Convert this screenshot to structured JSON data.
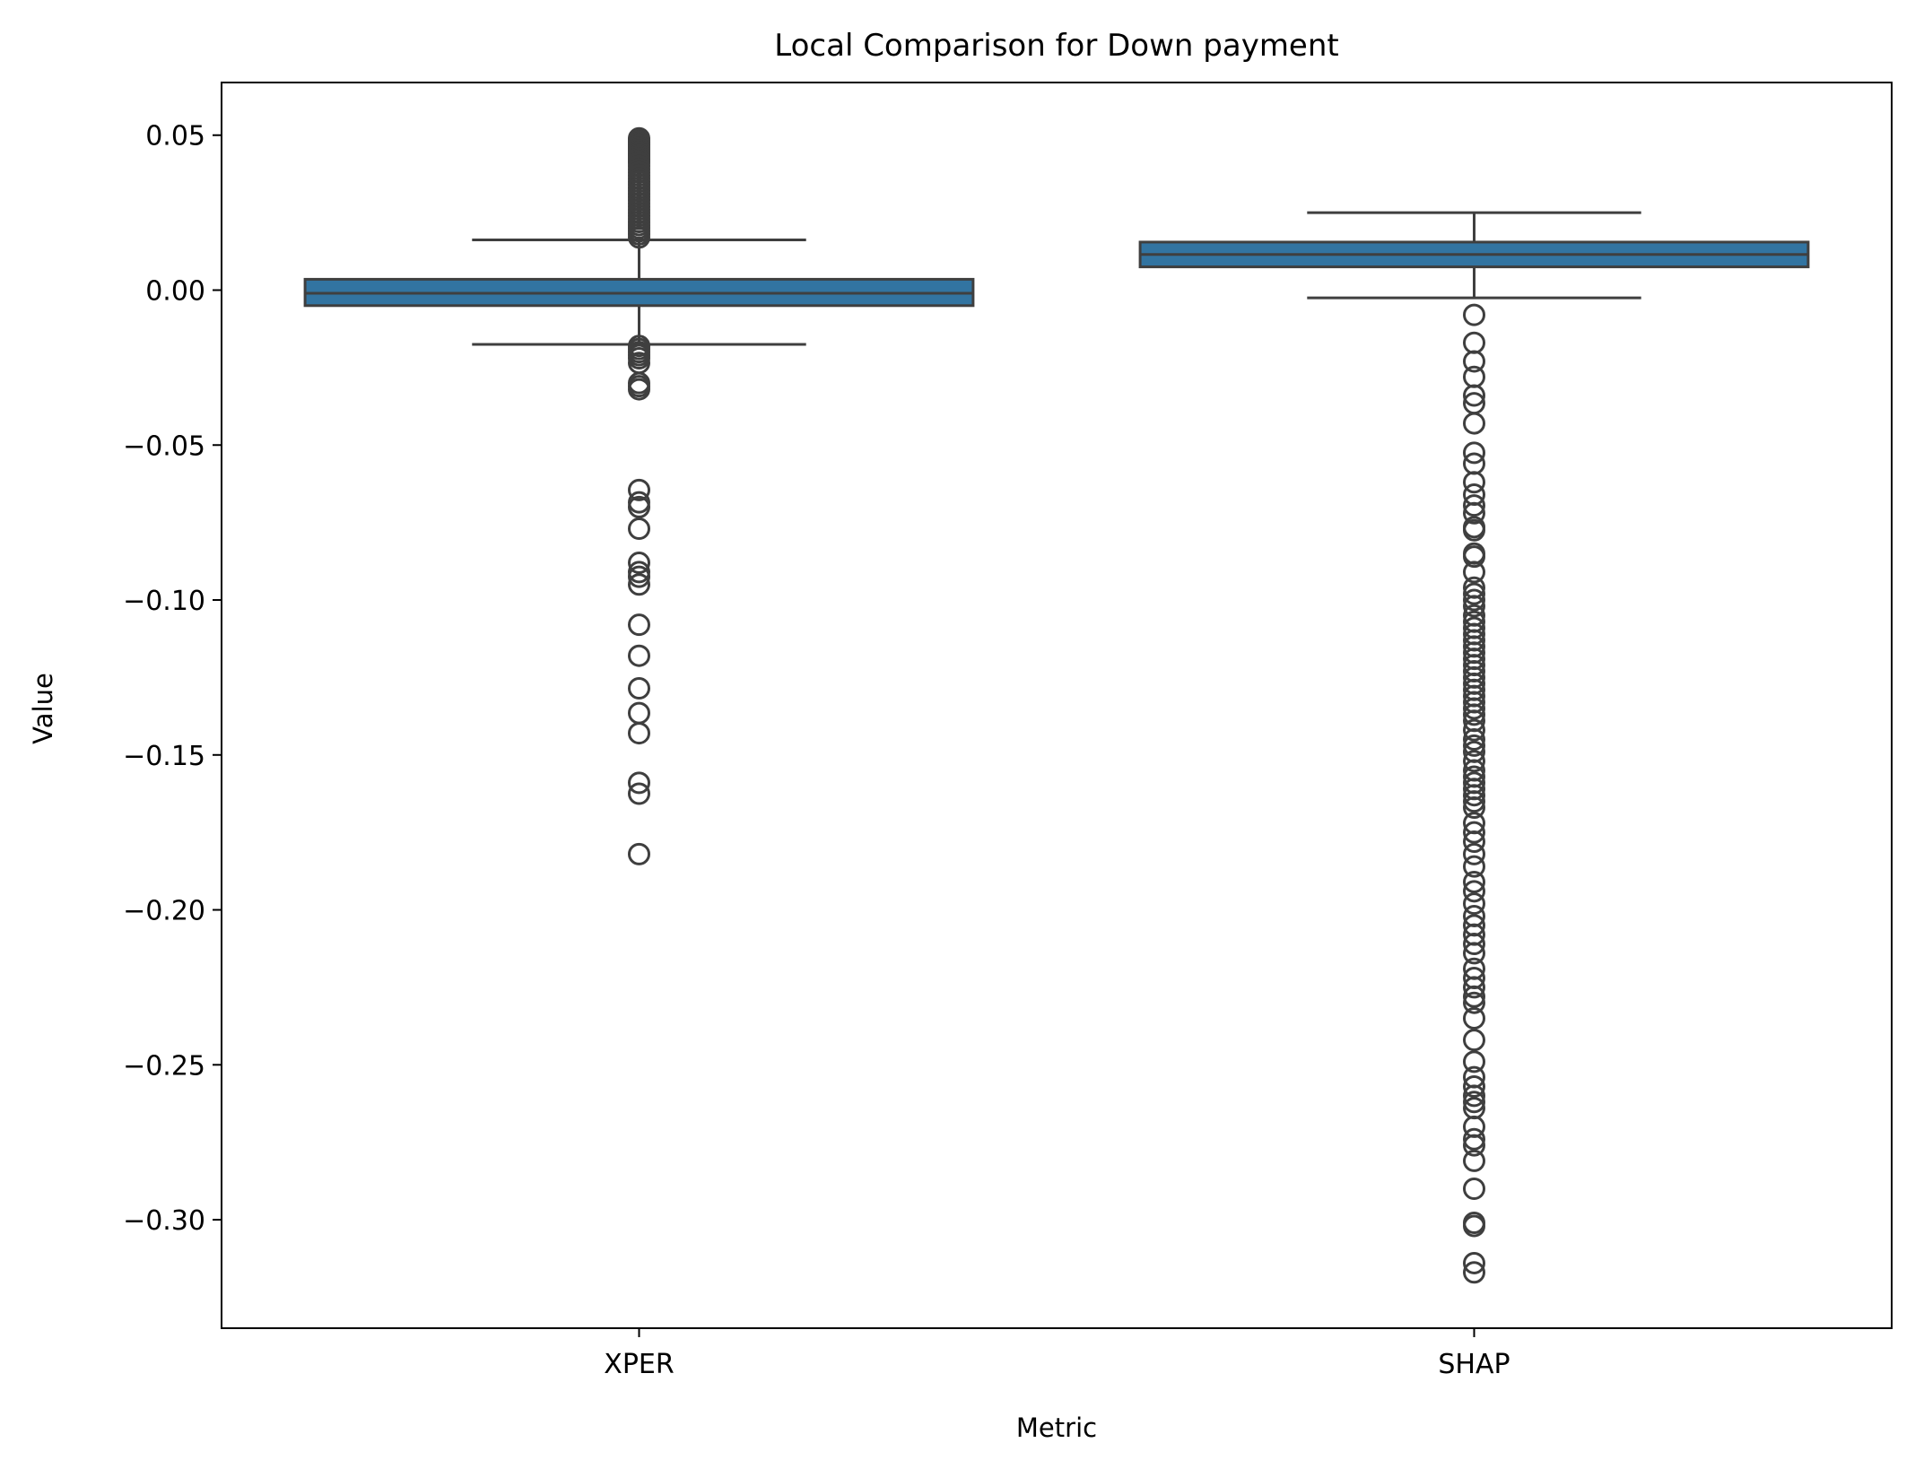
{
  "chart_data": {
    "type": "box",
    "title": "Local Comparison for Down payment",
    "xlabel": "Metric",
    "ylabel": "Value",
    "ylim": [
      -0.335,
      0.067
    ],
    "yticks": [
      0.05,
      0.0,
      -0.05,
      -0.1,
      -0.15,
      -0.2,
      -0.25,
      -0.3
    ],
    "ytick_labels": [
      "0.05",
      "0.00",
      "−0.05",
      "−0.10",
      "−0.15",
      "−0.20",
      "−0.25",
      "−0.30"
    ],
    "categories": [
      "XPER",
      "SHAP"
    ],
    "colors": {
      "box_fill": "#3274a1",
      "box_edge": "#3f3f3f",
      "axis": "#000000"
    },
    "boxes": [
      {
        "name": "XPER",
        "whisker_low": -0.0175,
        "q1": -0.005,
        "median": -0.001,
        "q3": 0.0035,
        "whisker_high": 0.0162,
        "outliers": [
          0.049,
          0.0485,
          0.048,
          0.0475,
          0.047,
          0.0465,
          0.046,
          0.0455,
          0.045,
          0.0445,
          0.044,
          0.0435,
          0.043,
          0.0425,
          0.042,
          0.0415,
          0.041,
          0.04,
          0.039,
          0.038,
          0.037,
          0.036,
          0.035,
          0.034,
          0.033,
          0.032,
          0.031,
          0.03,
          0.029,
          0.028,
          0.027,
          0.026,
          0.025,
          0.024,
          0.023,
          0.022,
          0.021,
          0.02,
          0.019,
          0.018,
          0.017,
          -0.018,
          -0.019,
          -0.02,
          -0.021,
          -0.022,
          -0.0235,
          -0.03,
          -0.031,
          -0.032,
          -0.0645,
          -0.0685,
          -0.07,
          -0.077,
          -0.088,
          -0.091,
          -0.0925,
          -0.095,
          -0.108,
          -0.118,
          -0.1285,
          -0.1365,
          -0.143,
          -0.159,
          -0.1625,
          -0.182
        ]
      },
      {
        "name": "SHAP",
        "whisker_low": -0.0025,
        "q1": 0.0075,
        "median": 0.0115,
        "q3": 0.0155,
        "whisker_high": 0.025,
        "outliers": [
          -0.008,
          -0.017,
          -0.023,
          -0.028,
          -0.034,
          -0.0365,
          -0.043,
          -0.0525,
          -0.056,
          -0.062,
          -0.066,
          -0.0695,
          -0.072,
          -0.0765,
          -0.0775,
          -0.085,
          -0.086,
          -0.091,
          -0.096,
          -0.098,
          -0.1,
          -0.102,
          -0.105,
          -0.107,
          -0.109,
          -0.111,
          -0.113,
          -0.115,
          -0.117,
          -0.119,
          -0.121,
          -0.123,
          -0.125,
          -0.127,
          -0.129,
          -0.131,
          -0.133,
          -0.135,
          -0.137,
          -0.139,
          -0.142,
          -0.145,
          -0.147,
          -0.149,
          -0.152,
          -0.155,
          -0.157,
          -0.159,
          -0.161,
          -0.163,
          -0.165,
          -0.167,
          -0.172,
          -0.175,
          -0.178,
          -0.182,
          -0.186,
          -0.191,
          -0.194,
          -0.198,
          -0.202,
          -0.205,
          -0.208,
          -0.211,
          -0.214,
          -0.219,
          -0.222,
          -0.225,
          -0.228,
          -0.23,
          -0.235,
          -0.242,
          -0.249,
          -0.254,
          -0.257,
          -0.26,
          -0.262,
          -0.264,
          -0.27,
          -0.274,
          -0.276,
          -0.281,
          -0.29,
          -0.301,
          -0.302,
          -0.314,
          -0.317
        ]
      }
    ],
    "grid": false,
    "legend": "none"
  }
}
